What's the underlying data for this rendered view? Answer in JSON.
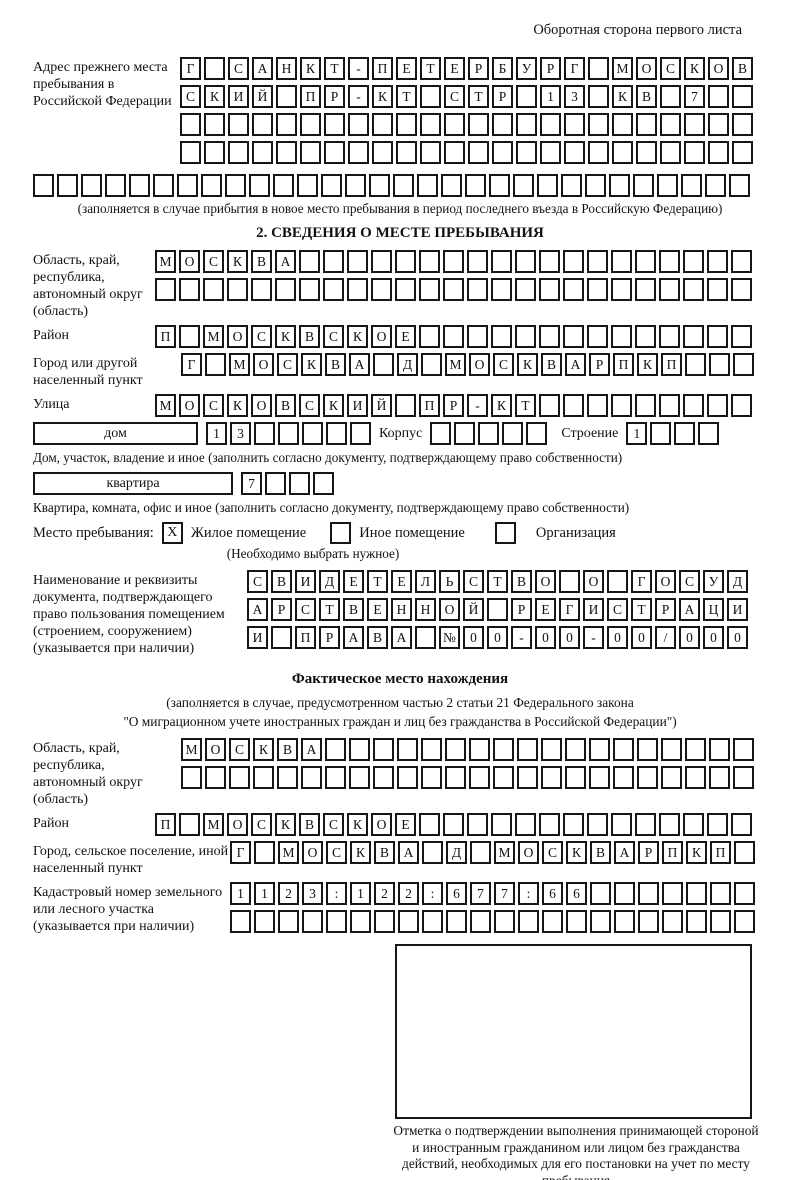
{
  "page": {
    "header_note": "Оборотная сторона первого листа"
  },
  "prev_address": {
    "label": "Адрес прежнего места пребывания в Российской Федерации",
    "row1": {
      "text": "Г САНКТ-ПЕТЕРБУРГ МОСКОВ",
      "len": 24
    },
    "row2": {
      "text": "СКИЙ ПР-КТ СТР 13 КВ 7",
      "len": 24
    },
    "row3": {
      "text": "",
      "len": 24
    },
    "row4": {
      "text": "",
      "len": 24
    },
    "full_row": {
      "text": "",
      "len": 30
    },
    "note": "(заполняется в случае прибытия в новое место пребывания в период последнего въезда в Российскую Федерацию)"
  },
  "section2": {
    "title": "2. СВЕДЕНИЯ О МЕСТЕ ПРЕБЫВАНИЯ",
    "region": {
      "label": "Область, край, республика, автономный округ (область)",
      "row1": {
        "text": "МОСКВА",
        "len": 25
      },
      "row2": {
        "text": "",
        "len": 25
      }
    },
    "district": {
      "label": "Район",
      "row": {
        "text": "П МОСКВСКОЕ",
        "len": 25
      }
    },
    "city": {
      "label": "Город или другой населенный пункт",
      "row": {
        "text": "Г МОСКВА Д МОСКВАРПКП",
        "len": 24
      }
    },
    "street": {
      "label": "Улица",
      "row": {
        "text": "МОСКОВСКИЙ ПР-КТ",
        "len": 25
      }
    },
    "house": {
      "box_label": "дом",
      "cells": {
        "text": "13",
        "len": 7
      },
      "korpus_label": "Корпус",
      "korpus_cells": {
        "text": "",
        "len": 5
      },
      "stroenie_label": "Строение",
      "stroenie_cells": {
        "text": "1",
        "len": 4
      },
      "note": "Дом, участок, владение и иное (заполнить согласно документу, подтверждающему право собственности)"
    },
    "apartment": {
      "box_label": "квартира",
      "cells": {
        "text": "7",
        "len": 4
      },
      "note": "Квартира, комната, офис и иное (заполнить согласно документу, подтверждающему право собственности)"
    },
    "stay": {
      "label": "Место пребывания:",
      "opt1": {
        "mark": "X",
        "label": "Жилое помещение"
      },
      "opt2": {
        "mark": "",
        "label": "Иное помещение"
      },
      "opt3": {
        "mark": "",
        "label": "Организация"
      },
      "note": "(Необходимо выбрать нужное)"
    },
    "document": {
      "label": "Наименование и реквизиты документа, подтверждающего право пользования помещением (строением, сооружением) (указывается при наличии)",
      "row1": {
        "text": "СВИДЕТЕЛЬСТВО О ГОСУД",
        "len": 21
      },
      "row2": {
        "text": "АРСТВЕННОЙ РЕГИСТРАЦИ",
        "len": 21
      },
      "row3": {
        "text": "И ПРАВА №00-00-00/000",
        "len": 21
      }
    }
  },
  "actual_location": {
    "title": "Фактическое место нахождения",
    "note1": "(заполняется в случае, предусмотренном частью 2 статьи 21 Федерального закона",
    "note2": "\"О миграционном учете иностранных граждан и лиц без гражданства в Российской Федерации\")",
    "region": {
      "label": "Область, край, республика, автономный округ (область)",
      "row1": {
        "text": "МОСКВА",
        "len": 24
      },
      "row2": {
        "text": "",
        "len": 24
      }
    },
    "district": {
      "label": "Район",
      "row": {
        "text": "П МОСКВСКОЕ",
        "len": 25
      }
    },
    "city": {
      "label": "Город, сельское поселение, иной населенный пункт",
      "row": {
        "text": "Г МОСКВА Д МОСКВАРПКП",
        "len": 22
      }
    },
    "cadastral": {
      "label": "Кадастровый номер земельного или лесного участка (указывается при наличии)",
      "row1": {
        "text": "1123:122:677:66",
        "len": 22
      },
      "row2": {
        "text": "",
        "len": 22
      }
    },
    "stamp_caption": "Отметка о подтверждении выполнения принимающей стороной и иностранным гражданином или лицом без гражданства действий, необходимых для его постановки на учет по месту пребывания"
  }
}
